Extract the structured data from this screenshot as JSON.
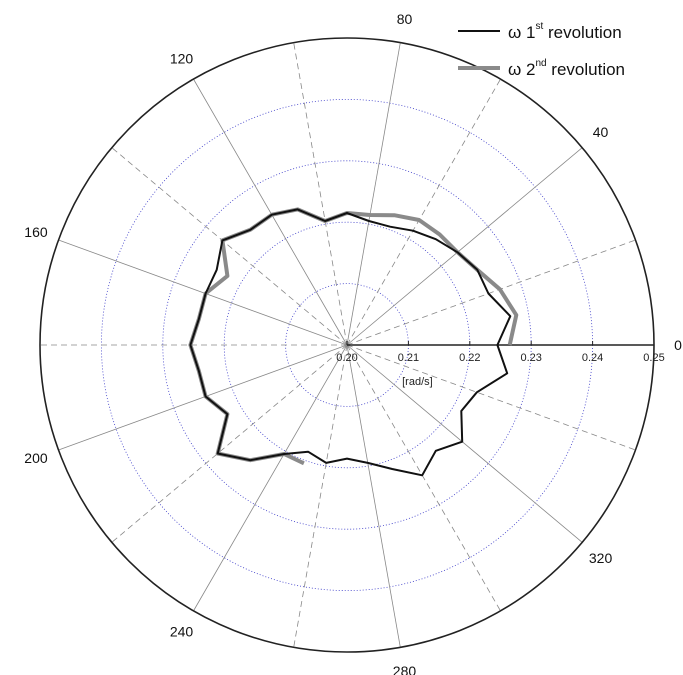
{
  "chart_data": {
    "type": "polar-line",
    "angle_unit": "deg",
    "radial_unit_label": "[rad/s]",
    "radial_range": [
      0.2,
      0.25
    ],
    "radial_ticks": [
      "0.20",
      "0.21",
      "0.22",
      "0.23",
      "0.24",
      "0.25"
    ],
    "angular_ticks": [
      "0",
      "40",
      "80",
      "120",
      "160",
      "200",
      "240",
      "280",
      "320"
    ],
    "grid": true,
    "legend_position": "top-right",
    "series": [
      {
        "name": "ω 1st revolution",
        "legend_main": "ω 1",
        "legend_sup": "st",
        "legend_tail": " revolution",
        "color": "#111111",
        "points": [
          [
            0,
            0.2245
          ],
          [
            10,
            0.227
          ],
          [
            20,
            0.2245
          ],
          [
            30,
            0.2245
          ],
          [
            40,
            0.2235
          ],
          [
            50,
            0.2225
          ],
          [
            60,
            0.2215
          ],
          [
            70,
            0.2205
          ],
          [
            80,
            0.2205
          ],
          [
            90,
            0.2215
          ],
          [
            100,
            0.2205
          ],
          [
            110,
            0.2235
          ],
          [
            120,
            0.2245
          ],
          [
            130,
            0.2245
          ],
          [
            140,
            0.2265
          ],
          [
            150,
            0.2245
          ],
          [
            160,
            0.2245
          ],
          [
            170,
            0.2245
          ],
          [
            180,
            0.2255
          ],
          [
            190,
            0.2245
          ],
          [
            200,
            0.2245
          ],
          [
            210,
            0.2225
          ],
          [
            220,
            0.2275
          ],
          [
            230,
            0.2245
          ],
          [
            240,
            0.2205
          ],
          [
            250,
            0.2185
          ],
          [
            260,
            0.2195
          ],
          [
            270,
            0.2185
          ],
          [
            280,
            0.2195
          ],
          [
            290,
            0.2215
          ],
          [
            300,
            0.2245
          ],
          [
            310,
            0.2225
          ],
          [
            320,
            0.2245
          ],
          [
            330,
            0.2215
          ],
          [
            340,
            0.2225
          ],
          [
            350,
            0.2265
          ],
          [
            360,
            0.2245
          ]
        ]
      },
      {
        "name": "ω 2nd revolution",
        "legend_main": "ω 2",
        "legend_sup": "nd",
        "legend_tail": " revolution",
        "color": "#8a8a8a",
        "points": [
          [
            0,
            0.2265
          ],
          [
            10,
            0.228
          ],
          [
            20,
            0.2265
          ],
          [
            30,
            0.2245
          ],
          [
            40,
            0.2235
          ],
          [
            50,
            0.2235
          ],
          [
            60,
            0.2235
          ],
          [
            70,
            0.2225
          ],
          [
            80,
            0.2215
          ],
          [
            90,
            0.2215
          ],
          [
            100,
            0.2205
          ],
          [
            110,
            0.2235
          ],
          [
            120,
            0.2245
          ],
          [
            130,
            0.2245
          ],
          [
            140,
            0.2265
          ],
          [
            150,
            0.2225
          ],
          [
            160,
            0.2245
          ],
          [
            170,
            0.2245
          ],
          [
            180,
            0.2255
          ],
          [
            190,
            0.2245
          ],
          [
            200,
            0.2245
          ],
          [
            210,
            0.2225
          ],
          [
            220,
            0.2275
          ],
          [
            230,
            0.2245
          ],
          [
            240,
            0.2205
          ],
          [
            250,
            0.2205
          ]
        ]
      }
    ]
  }
}
